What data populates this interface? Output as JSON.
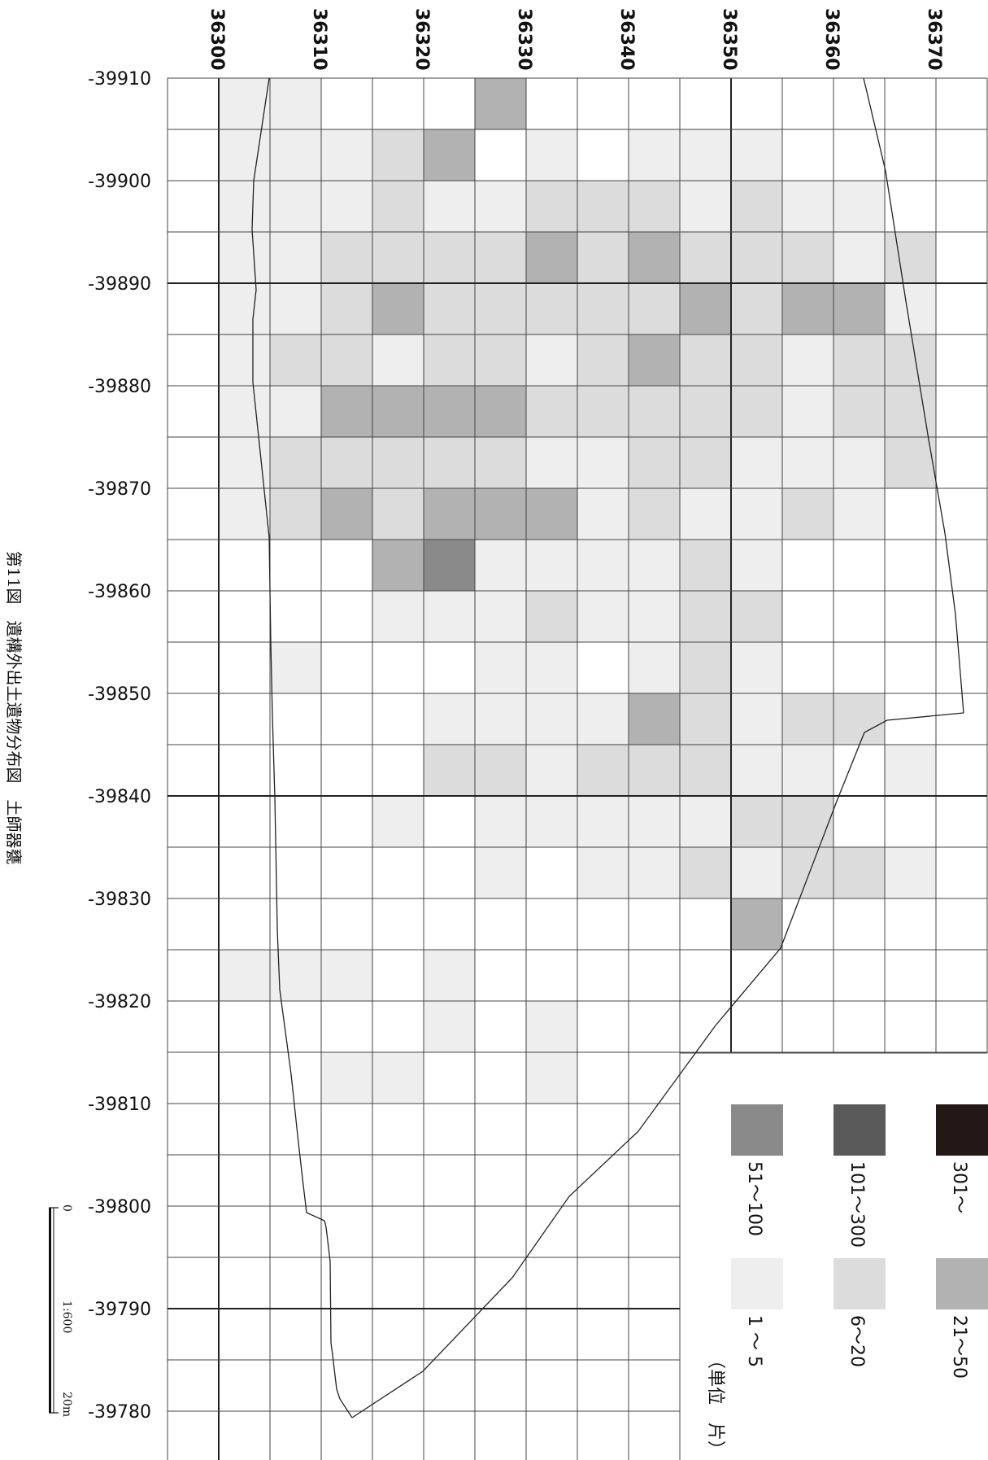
{
  "caption": "第11図　遺構外出土遺物分布図　土師器甕",
  "unit_label": "（単位　片）",
  "x_axis": {
    "labels": [
      "36300",
      "36310",
      "36320",
      "36330",
      "36340",
      "36350",
      "36360",
      "36370"
    ]
  },
  "y_axis": {
    "labels": [
      "-39910",
      "-39900",
      "-39890",
      "-39880",
      "-39870",
      "-39860",
      "-39850",
      "-39840",
      "-39830",
      "-39820",
      "-39810",
      "-39800",
      "-39790",
      "-39780"
    ]
  },
  "scale_bar": {
    "start": "0",
    "ratio": "1:600",
    "end": "20m"
  },
  "legend": [
    {
      "label": "301～",
      "color": "#231815",
      "level": 6
    },
    {
      "label": "101～300",
      "color": "#5a5a5a",
      "level": 5
    },
    {
      "label": "51～100",
      "color": "#8a8a8a",
      "level": 4
    },
    {
      "label": "21～50",
      "color": "#b2b2b2",
      "level": 3
    },
    {
      "label": "6～20",
      "color": "#dcdcdc",
      "level": 2
    },
    {
      "label": "1 ～ 5",
      "color": "#eeeeee",
      "level": 1
    }
  ],
  "grid_counts": [
    "11000300000000",
    "11123010111000",
    "11121122212110",
    "11222232322212",
    "11232222232331",
    "12212212322122",
    "11333322222122",
    "12222211221112",
    "12323331211210",
    "00034111121000",
    "00011121122000",
    "01000110121000",
    "00001111321220",
    "00002212221101",
    "00010111112200",
    "00000101121221",
    "00000000003000",
    "11101000000000",
    "00001010000000",
    "00110010000000"
  ]
}
